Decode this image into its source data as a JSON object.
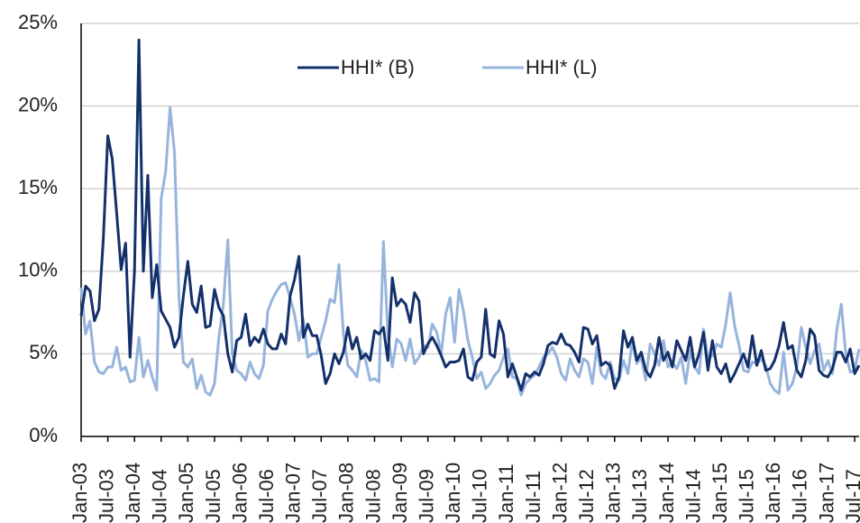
{
  "chart_data": {
    "type": "line",
    "categories": [
      "Jan-03",
      null,
      null,
      null,
      null,
      null,
      "Jul-03",
      null,
      null,
      null,
      null,
      null,
      "Jan-04",
      null,
      null,
      null,
      null,
      null,
      "Jul-04",
      null,
      null,
      null,
      null,
      null,
      "Jan-05",
      null,
      null,
      null,
      null,
      null,
      "Jul-05",
      null,
      null,
      null,
      null,
      null,
      "Jan-06",
      null,
      null,
      null,
      null,
      null,
      "Jul-06",
      null,
      null,
      null,
      null,
      null,
      "Jan-07",
      null,
      null,
      null,
      null,
      null,
      "Jul-07",
      null,
      null,
      null,
      null,
      null,
      "Jan-08",
      null,
      null,
      null,
      null,
      null,
      "Jul-08",
      null,
      null,
      null,
      null,
      null,
      "Jan-09",
      null,
      null,
      null,
      null,
      null,
      "Jul-09",
      null,
      null,
      null,
      null,
      null,
      "Jan-10",
      null,
      null,
      null,
      null,
      null,
      "Jul-10",
      null,
      null,
      null,
      null,
      null,
      "Jan-11",
      null,
      null,
      null,
      null,
      null,
      "Jul-11",
      null,
      null,
      null,
      null,
      null,
      "Jan-12",
      null,
      null,
      null,
      null,
      null,
      "Jul-12",
      null,
      null,
      null,
      null,
      null,
      "Jan-13",
      null,
      null,
      null,
      null,
      null,
      "Jul-13",
      null,
      null,
      null,
      null,
      null,
      "Jan-14",
      null,
      null,
      null,
      null,
      null,
      "Jul-14",
      null,
      null,
      null,
      null,
      null,
      "Jan-15",
      null,
      null,
      null,
      null,
      null,
      "Jul-15",
      null,
      null,
      null,
      null,
      null,
      "Jan-16",
      null,
      null,
      null,
      null,
      null,
      "Jul-16",
      null,
      null,
      null,
      null,
      null,
      "Jan-17",
      null,
      null,
      null,
      null,
      null,
      "Jul-17",
      null
    ],
    "series": [
      {
        "name": "HHI* (B)",
        "color": "#14306b",
        "values": [
          7.3,
          9.1,
          8.8,
          7.0,
          7.7,
          12,
          18.2,
          16.8,
          13.5,
          10.1,
          11.7,
          4.8,
          10,
          24.0,
          10.0,
          15.8,
          8.4,
          10.4,
          7.6,
          7.1,
          6.6,
          5.4,
          6.0,
          8.5,
          10.6,
          8.0,
          7.5,
          9.1,
          6.6,
          6.7,
          8.9,
          7.8,
          7.3,
          5.0,
          3.9,
          5.8,
          6.0,
          7.4,
          5.5,
          6.0,
          5.7,
          6.5,
          5.6,
          5.3,
          5.3,
          6.2,
          5.6,
          8.5,
          9.5,
          10.9,
          6.0,
          6.8,
          6.1,
          6.1,
          4.9,
          3.2,
          3.8,
          5.0,
          4.4,
          5.1,
          6.6,
          5.3,
          6.0,
          4.7,
          5.0,
          4.6,
          6.4,
          6.2,
          6.6,
          4.6,
          9.6,
          7.9,
          8.3,
          8.0,
          6.9,
          8.7,
          8.2,
          5.0,
          5.6,
          6.0,
          5.5,
          4.9,
          4.2,
          4.5,
          4.5,
          4.6,
          5.3,
          3.6,
          3.4,
          4.5,
          4.8,
          7.7,
          5.0,
          4.8,
          7.0,
          6.2,
          3.6,
          4.4,
          3.6,
          2.8,
          3.8,
          3.6,
          3.9,
          3.7,
          4.4,
          5.5,
          5.7,
          5.6,
          6.2,
          5.6,
          5.5,
          5.1,
          4.5,
          6.6,
          6.5,
          5.6,
          6.1,
          4.3,
          4.5,
          4.3,
          2.9,
          3.6,
          6.4,
          5.4,
          6.0,
          4.6,
          5.1,
          4.0,
          3.6,
          4.3,
          6.0,
          4.6,
          5.1,
          4.2,
          5.8,
          5.2,
          4.6,
          6.0,
          4.2,
          5.0,
          6.3,
          4.0,
          5.8,
          4.2,
          3.8,
          4.4,
          3.3,
          3.8,
          4.4,
          5.0,
          4.2,
          6.1,
          4.3,
          5.2,
          4.0,
          4.1,
          4.6,
          5.5,
          6.9,
          5.3,
          5.5,
          4.0,
          3.6,
          4.6,
          6.5,
          6.1,
          4.0,
          3.7,
          3.6,
          4.1,
          5.1,
          5.1,
          4.5,
          5.3,
          3.8,
          4.3
        ]
      },
      {
        "name": "HHI* (L)",
        "color": "#96b4dc",
        "values": [
          9.0,
          6.2,
          7.0,
          4.5,
          3.9,
          3.8,
          4.2,
          4.2,
          5.4,
          4.0,
          4.2,
          3.3,
          3.4,
          6.0,
          3.6,
          4.6,
          3.6,
          2.8,
          14.4,
          16.0,
          19.9,
          17.2,
          8.5,
          4.5,
          4.2,
          4.7,
          2.9,
          3.7,
          2.7,
          2.5,
          3.2,
          6.0,
          8.0,
          11.9,
          5.0,
          4.0,
          3.8,
          3.4,
          4.5,
          3.8,
          3.5,
          4.3,
          7.6,
          8.3,
          8.8,
          9.2,
          9.3,
          8.4,
          7.4,
          5.8,
          7.1,
          4.8,
          5.0,
          5.0,
          6.0,
          7.0,
          8.3,
          8.1,
          10.4,
          6.2,
          4.3,
          4.0,
          3.6,
          5.2,
          4.6,
          3.4,
          3.5,
          3.3,
          11.8,
          6.2,
          4.2,
          5.9,
          5.6,
          4.6,
          5.9,
          4.4,
          4.8,
          5.5,
          5.4,
          6.8,
          6.3,
          5.0,
          7.4,
          8.4,
          5.7,
          8.9,
          7.6,
          5.8,
          4.8,
          3.5,
          3.9,
          2.9,
          3.2,
          3.7,
          4.0,
          4.8,
          5.3,
          3.6,
          3.5,
          2.5,
          3.2,
          3.5,
          3.7,
          4.2,
          4.8,
          5.0,
          5.4,
          4.8,
          3.8,
          3.4,
          4.7,
          4.0,
          3.6,
          4.7,
          4.5,
          3.2,
          5.4,
          3.8,
          3.5,
          4.5,
          3.5,
          3.4,
          4.6,
          3.8,
          5.8,
          4.4,
          4.8,
          3.4,
          5.6,
          5.0,
          4.3,
          5.8,
          4.2,
          4.5,
          4.1,
          4.8,
          3.2,
          5.2,
          4.2,
          3.8,
          6.5,
          4.7,
          4.9,
          5.6,
          5.4,
          6.8,
          8.7,
          6.7,
          5.5,
          4.0,
          3.9,
          4.5,
          4.4,
          4.7,
          4.3,
          3.2,
          2.8,
          2.6,
          5.1,
          2.8,
          3.2,
          4.2,
          6.6,
          5.4,
          4.4,
          5.2,
          5.6,
          4.0,
          4.6,
          3.8,
          6.5,
          8.0,
          5.0,
          3.9,
          4.0,
          5.3
        ]
      }
    ],
    "ylim": [
      0,
      25
    ],
    "yticks": [
      {
        "value": 0,
        "label": "0%"
      },
      {
        "value": 5,
        "label": "5%"
      },
      {
        "value": 10,
        "label": "10%"
      },
      {
        "value": 15,
        "label": "15%"
      },
      {
        "value": 20,
        "label": "20%"
      },
      {
        "value": 25,
        "label": "25%"
      }
    ],
    "grid": true,
    "legend": "top"
  }
}
